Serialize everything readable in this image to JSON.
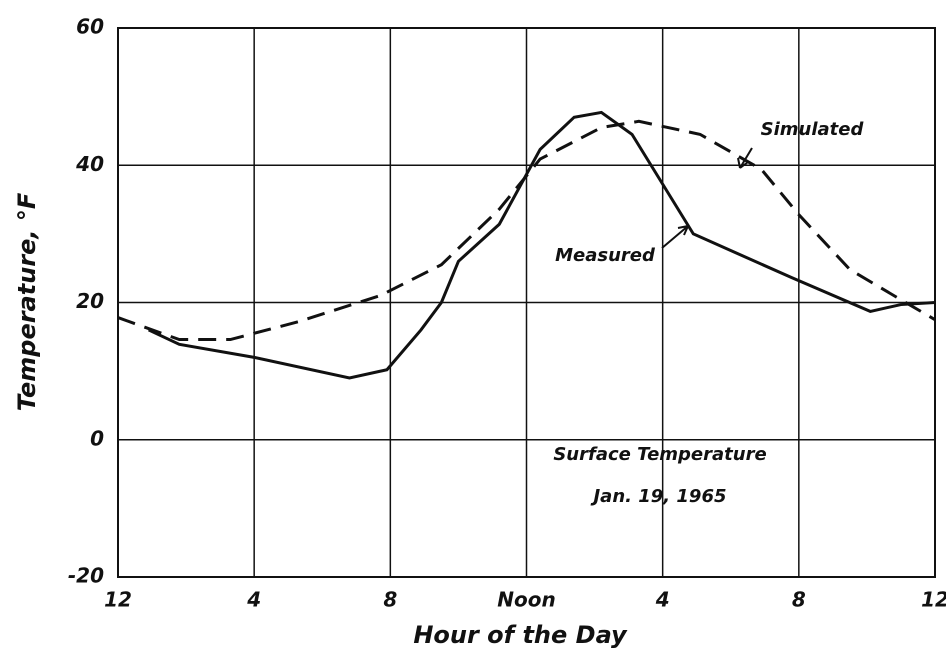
{
  "chart_data": {
    "type": "line",
    "xlabel": "Hour of the Day",
    "ylabel": "Temperature, °F",
    "annotations": [
      "Surface Temperature",
      "Jan. 19, 1965"
    ],
    "xlim": [
      0,
      24
    ],
    "xticks": [
      {
        "value": 0,
        "label": "12"
      },
      4,
      8,
      {
        "value": 12,
        "label": "Noon"
      },
      {
        "value": 16,
        "label": "4"
      },
      {
        "value": 20,
        "label": "8"
      },
      {
        "value": 24,
        "label": "12"
      }
    ],
    "ylim": [
      -20,
      60
    ],
    "yticks": [
      -20,
      0,
      20,
      40,
      60
    ],
    "grid": true,
    "series": [
      {
        "name": "Measured",
        "color": "#111111",
        "dash": false,
        "x": [
          0.9,
          1.8,
          4,
          6.8,
          7.9,
          8.9,
          9.5,
          10,
          11.2,
          12.4,
          13.4,
          14.2,
          15.1,
          16.9,
          19.8,
          22.1,
          23,
          24
        ],
        "values": [
          16,
          13.9,
          12,
          9,
          10.2,
          16,
          20,
          26,
          31.4,
          42.3,
          47,
          47.7,
          44.5,
          30,
          23.6,
          18.7,
          19.7,
          20
        ]
      },
      {
        "name": "Simulated",
        "color": "#111111",
        "dash": true,
        "x": [
          0,
          1.8,
          3.3,
          5.3,
          7.7,
          9.5,
          11.2,
          12.4,
          14.2,
          15.3,
          17.1,
          18.9,
          20,
          21.5,
          23,
          24
        ],
        "values": [
          17.8,
          14.6,
          14.6,
          17.2,
          21,
          25.5,
          33.6,
          40.9,
          45.5,
          46.4,
          44.5,
          39.4,
          32.8,
          24.8,
          20.4,
          17.5
        ]
      }
    ]
  }
}
